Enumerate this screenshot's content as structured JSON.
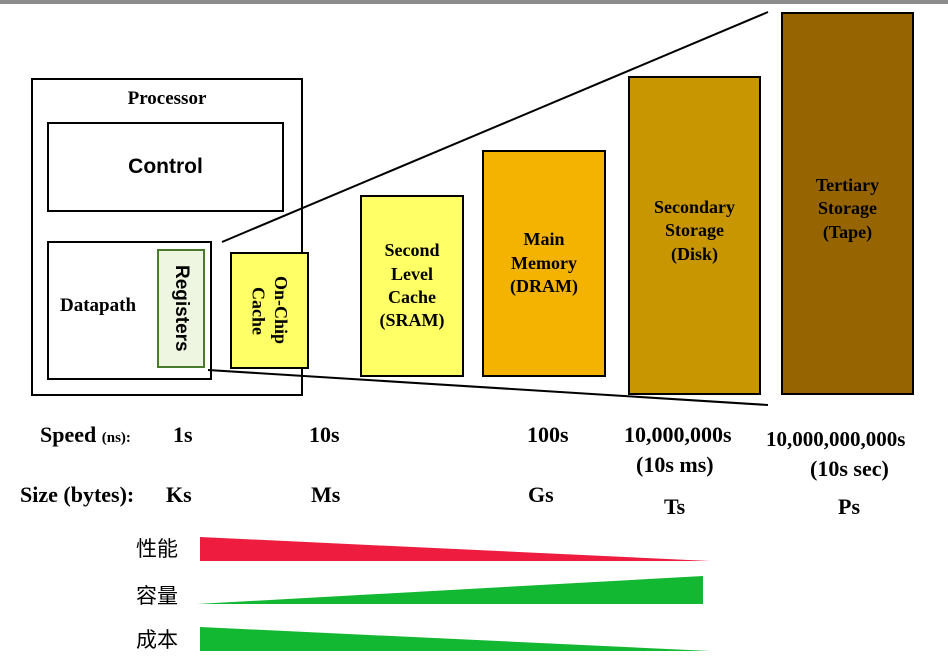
{
  "colors": {
    "cache_fill": "#ffff66",
    "sram_fill": "#ffff66",
    "dram_fill": "#f3b300",
    "disk_fill": "#c89600",
    "tape_fill": "#966400",
    "performance_bar": "#ee1c3e",
    "green_bar": "#13b832"
  },
  "processor": {
    "title": "Processor",
    "control_label": "Control",
    "datapath_label": "Datapath",
    "registers_label": "Registers"
  },
  "levels": [
    {
      "id": "onchip",
      "label": "On-Chip\nCache"
    },
    {
      "id": "sram",
      "label": "Second\nLevel\nCache\n(SRAM)"
    },
    {
      "id": "dram",
      "label": "Main\nMemory\n(DRAM)"
    },
    {
      "id": "disk",
      "label": "Secondary\nStorage\n(Disk)"
    },
    {
      "id": "tape",
      "label": "Tertiary\nStorage\n(Tape)"
    }
  ],
  "speed": {
    "label": "Speed",
    "unit": "(ns):",
    "values": [
      "1s",
      "10s",
      "100s",
      "10,000,000s",
      "10,000,000,000s"
    ],
    "subvalues": [
      "(10s ms)",
      "(10s sec)"
    ]
  },
  "size": {
    "label": "Size (bytes):",
    "values": [
      "Ks",
      "Ms",
      "Gs",
      "Ts",
      "Ps"
    ]
  },
  "trends": {
    "performance": "性能",
    "capacity": "容量",
    "cost": "成本"
  }
}
